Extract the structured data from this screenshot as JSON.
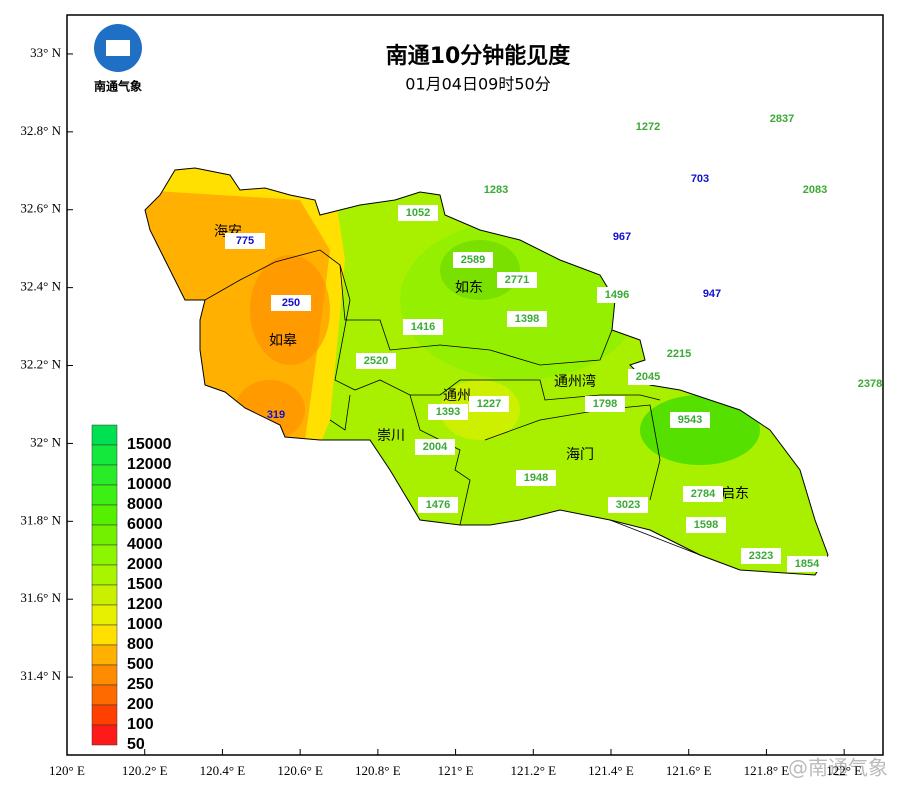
{
  "header": {
    "logo_text": "南通气象",
    "title": "南通10分钟能见度",
    "subtitle": "01月04日09时50分"
  },
  "map": {
    "xlim": [
      120,
      122.1
    ],
    "ylim": [
      31.2,
      33.1
    ],
    "xticks": [
      {
        "value": 120,
        "label": "120° E"
      },
      {
        "value": 120.2,
        "label": "120.2° E"
      },
      {
        "value": 120.4,
        "label": "120.4° E"
      },
      {
        "value": 120.6,
        "label": "120.6° E"
      },
      {
        "value": 120.8,
        "label": "120.8° E"
      },
      {
        "value": 121,
        "label": "121° E"
      },
      {
        "value": 121.2,
        "label": "121.2° E"
      },
      {
        "value": 121.4,
        "label": "121.4° E"
      },
      {
        "value": 121.6,
        "label": "121.6° E"
      },
      {
        "value": 121.8,
        "label": "121.8° E"
      },
      {
        "value": 122,
        "label": "122° E"
      }
    ],
    "yticks": [
      {
        "value": 33,
        "label": "33° N"
      },
      {
        "value": 32.8,
        "label": "32.8° N"
      },
      {
        "value": 32.6,
        "label": "32.6° N"
      },
      {
        "value": 32.4,
        "label": "32.4° N"
      },
      {
        "value": 32.2,
        "label": "32.2° N"
      },
      {
        "value": 32,
        "label": "32° N"
      },
      {
        "value": 31.8,
        "label": "31.8° N"
      },
      {
        "value": 31.6,
        "label": "31.6° N"
      },
      {
        "value": 31.4,
        "label": "31.4° N"
      }
    ],
    "places": [
      "海安",
      "如皋",
      "如东",
      "通州",
      "崇川",
      "通州湾",
      "海门",
      "启东"
    ],
    "stations": [
      {
        "value": 1272,
        "color": "#3aaa35"
      },
      {
        "value": 2837,
        "color": "#3aaa35"
      },
      {
        "value": 1283,
        "color": "#3aaa35"
      },
      {
        "value": 703,
        "color": "#1010d0"
      },
      {
        "value": 2083,
        "color": "#3aaa35"
      },
      {
        "value": 1052,
        "color": "#3aaa35"
      },
      {
        "value": 775,
        "color": "#1010d0"
      },
      {
        "value": 967,
        "color": "#1010d0"
      },
      {
        "value": 2589,
        "color": "#3aaa35"
      },
      {
        "value": 2771,
        "color": "#3aaa35"
      },
      {
        "value": 1496,
        "color": "#3aaa35"
      },
      {
        "value": 947,
        "color": "#1010d0"
      },
      {
        "value": 250,
        "color": "#1010d0"
      },
      {
        "value": 1416,
        "color": "#3aaa35"
      },
      {
        "value": 1398,
        "color": "#3aaa35"
      },
      {
        "value": 2215,
        "color": "#3aaa35"
      },
      {
        "value": 2520,
        "color": "#3aaa35"
      },
      {
        "value": 2045,
        "color": "#3aaa35"
      },
      {
        "value": 2378,
        "color": "#3aaa35"
      },
      {
        "value": 1393,
        "color": "#3aaa35"
      },
      {
        "value": 1227,
        "color": "#3aaa35"
      },
      {
        "value": 1798,
        "color": "#3aaa35"
      },
      {
        "value": 9543,
        "color": "#3aaa35"
      },
      {
        "value": 319,
        "color": "#1010d0"
      },
      {
        "value": 2004,
        "color": "#3aaa35"
      },
      {
        "value": 1948,
        "color": "#3aaa35"
      },
      {
        "value": 2784,
        "color": "#3aaa35"
      },
      {
        "value": 3023,
        "color": "#3aaa35"
      },
      {
        "value": 1476,
        "color": "#3aaa35"
      },
      {
        "value": 1598,
        "color": "#3aaa35"
      },
      {
        "value": 2323,
        "color": "#3aaa35"
      },
      {
        "value": 1854,
        "color": "#3aaa35"
      }
    ]
  },
  "legend": {
    "levels": [
      {
        "value": 15000,
        "color": "#00e050"
      },
      {
        "value": 12000,
        "color": "#14e83c"
      },
      {
        "value": 10000,
        "color": "#28ec28"
      },
      {
        "value": 8000,
        "color": "#3cf014"
      },
      {
        "value": 6000,
        "color": "#55f000"
      },
      {
        "value": 4000,
        "color": "#73f000"
      },
      {
        "value": 2000,
        "color": "#8cf500"
      },
      {
        "value": 1500,
        "color": "#a8f500"
      },
      {
        "value": 1200,
        "color": "#c8f000"
      },
      {
        "value": 1000,
        "color": "#e6f000"
      },
      {
        "value": 800,
        "color": "#ffe000"
      },
      {
        "value": 500,
        "color": "#ffb000"
      },
      {
        "value": 250,
        "color": "#ff8c00"
      },
      {
        "value": 200,
        "color": "#ff6a00"
      },
      {
        "value": 100,
        "color": "#ff4000"
      },
      {
        "value": 50,
        "color": "#ff1a1a"
      }
    ]
  },
  "watermark": "@南通气象"
}
